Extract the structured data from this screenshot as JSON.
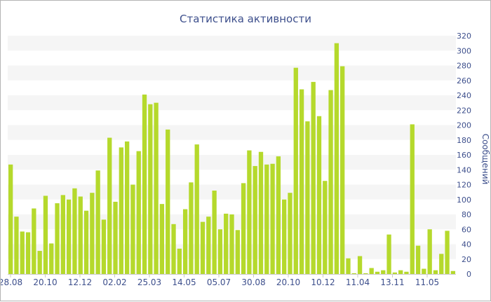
{
  "chart_data": {
    "type": "bar",
    "title": "Статистика активности",
    "xlabel": "",
    "ylabel": "Сообщений",
    "ylim": [
      0,
      320
    ],
    "yticks": [
      0,
      20,
      40,
      60,
      80,
      100,
      120,
      140,
      160,
      180,
      200,
      220,
      240,
      260,
      280,
      300,
      320
    ],
    "x_tick_labels": [
      "28.08",
      "20.10",
      "12.12",
      "02.02",
      "25.03",
      "14.05",
      "05.07",
      "30.08",
      "20.10",
      "10.12",
      "11.04",
      "13.11",
      "11.05"
    ],
    "grid": "horizontal bands",
    "bar_color": "#b5d92c",
    "band_color": "#f5f5f5",
    "text_color": "#3d4f8c",
    "values": [
      147,
      77,
      57,
      56,
      88,
      31,
      105,
      41,
      95,
      106,
      100,
      115,
      104,
      85,
      109,
      139,
      73,
      183,
      97,
      170,
      178,
      120,
      165,
      241,
      228,
      230,
      94,
      194,
      67,
      34,
      87,
      123,
      174,
      70,
      77,
      112,
      60,
      81,
      80,
      59,
      122,
      166,
      145,
      164,
      147,
      148,
      158,
      100,
      109,
      277,
      248,
      205,
      258,
      212,
      125,
      247,
      310,
      279,
      21,
      1,
      24,
      1,
      8,
      3,
      5,
      53,
      2,
      5,
      3,
      201,
      38,
      7,
      60,
      5,
      27,
      58,
      4
    ]
  }
}
